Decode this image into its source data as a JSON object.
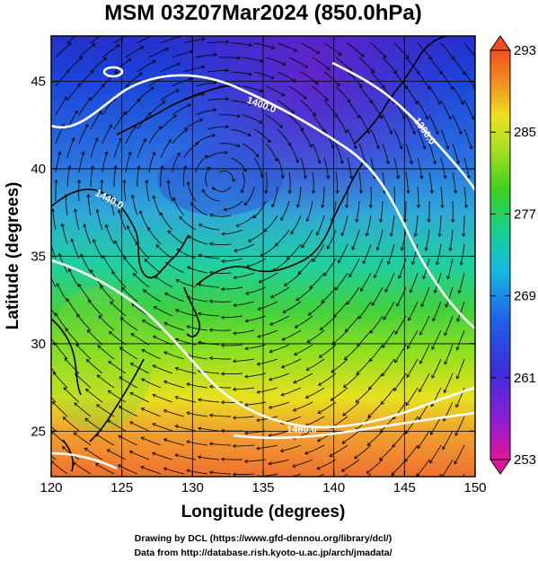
{
  "title": "MSM 03Z07Mar2024 (850.0hPa)",
  "x_axis": {
    "label": "Longitude (degrees)",
    "ticks": [
      "120",
      "125",
      "130",
      "135",
      "140",
      "145",
      "150"
    ]
  },
  "y_axis": {
    "label": "Latitude  (degrees)",
    "ticks": [
      "25",
      "30",
      "35",
      "40",
      "45"
    ]
  },
  "colorbar": {
    "ticks": [
      "293",
      "285",
      "277",
      "269",
      "261",
      "253"
    ],
    "colors": [
      "#e0149a",
      "#8b1fd6",
      "#3b2fd8",
      "#2060e8",
      "#18b8e0",
      "#18d090",
      "#40d020",
      "#a8e020",
      "#f0e020",
      "#f09020",
      "#f05020"
    ]
  },
  "contour_labels": [
    "1400.0",
    "1360.0",
    "1440.0",
    "1480.0"
  ],
  "credits": {
    "line1": "Drawing by DCL (https://www.gfd-dennou.org/library/dcl/)",
    "line2": "Data from http://database.rish.kyoto-u.ac.jp/arch/jmadata/"
  },
  "map": {
    "lon_range": [
      120,
      150
    ],
    "lat_range": [
      22.4,
      47.6
    ],
    "cb_range": [
      253,
      293
    ],
    "coast_color": "#000000",
    "contour_color": "#ffffff",
    "grid_color": "#000000"
  }
}
